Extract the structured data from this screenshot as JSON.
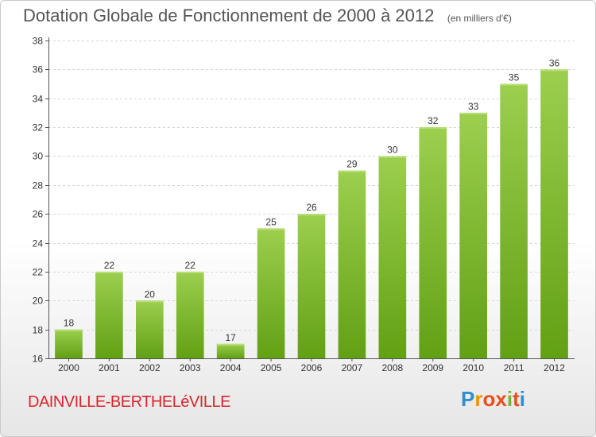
{
  "header": {
    "title": "Dotation Globale de Fonctionnement de 2000 à 2012",
    "unit": "(en milliers d'€)"
  },
  "commune": "DAINVILLE-BERTHELéVILLE",
  "logo": {
    "letters": [
      "P",
      "r",
      "o",
      "x",
      "i",
      "t",
      "i"
    ],
    "colors": [
      "#2d8fd0",
      "#f39200",
      "#e94e1b",
      "#e94e1b",
      "#74b62e",
      "#e94e1b",
      "#2d8fd0"
    ]
  },
  "chart_data": {
    "type": "bar",
    "categories": [
      "2000",
      "2001",
      "2002",
      "2003",
      "2004",
      "2005",
      "2006",
      "2007",
      "2008",
      "2009",
      "2010",
      "2011",
      "2012"
    ],
    "values": [
      18,
      22,
      20,
      22,
      17,
      25,
      26,
      29,
      30,
      32,
      33,
      35,
      36
    ],
    "ylim": [
      16,
      38
    ],
    "yticks": [
      16,
      18,
      20,
      22,
      24,
      26,
      28,
      30,
      32,
      34,
      36,
      38
    ],
    "grid": true,
    "bar_color_top": "#9ccf4e",
    "bar_color_bottom": "#62a014"
  }
}
